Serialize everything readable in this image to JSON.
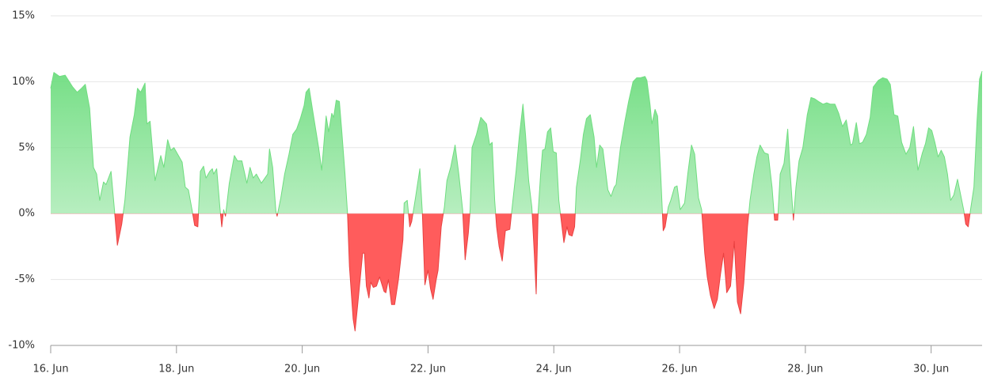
{
  "chart_data": {
    "type": "area",
    "x": [
      16.0,
      16.05,
      16.14,
      16.23,
      16.35,
      16.42,
      16.49,
      16.55,
      16.62,
      16.68,
      16.73,
      16.78,
      16.84,
      16.88,
      16.96,
      17.01,
      17.06,
      17.13,
      17.18,
      17.26,
      17.33,
      17.38,
      17.43,
      17.5,
      17.53,
      17.58,
      17.66,
      17.75,
      17.8,
      17.86,
      17.91,
      17.96,
      18.09,
      18.14,
      18.19,
      18.25,
      18.29,
      18.34,
      18.38,
      18.43,
      18.47,
      18.53,
      18.57,
      18.59,
      18.64,
      18.69,
      18.72,
      18.75,
      18.78,
      18.84,
      18.92,
      18.97,
      19.04,
      19.12,
      19.17,
      19.22,
      19.27,
      19.35,
      19.45,
      19.48,
      19.53,
      19.58,
      19.6,
      19.66,
      19.72,
      19.79,
      19.85,
      19.91,
      19.97,
      20.03,
      20.06,
      20.11,
      20.16,
      20.26,
      20.31,
      20.38,
      20.42,
      20.47,
      20.5,
      20.54,
      20.59,
      20.63,
      20.68,
      20.72,
      20.75,
      20.81,
      20.84,
      20.88,
      20.96,
      20.99,
      21.02,
      21.06,
      21.09,
      21.13,
      21.18,
      21.23,
      21.3,
      21.33,
      21.37,
      21.42,
      21.47,
      21.53,
      21.6,
      21.62,
      21.67,
      21.71,
      21.74,
      21.8,
      21.87,
      21.91,
      21.95,
      22.0,
      22.04,
      22.08,
      22.13,
      22.16,
      22.21,
      22.26,
      22.3,
      22.36,
      22.43,
      22.49,
      22.55,
      22.59,
      22.64,
      22.67,
      22.7,
      22.77,
      22.84,
      22.93,
      22.98,
      23.02,
      23.06,
      23.09,
      23.13,
      23.18,
      23.23,
      23.3,
      23.35,
      23.4,
      23.45,
      23.51,
      23.55,
      23.6,
      23.65,
      23.69,
      23.72,
      23.75,
      23.79,
      23.82,
      23.86,
      23.9,
      23.95,
      23.99,
      24.04,
      24.08,
      24.13,
      24.16,
      24.21,
      24.24,
      24.29,
      24.33,
      24.36,
      24.42,
      24.47,
      24.52,
      24.58,
      24.64,
      24.68,
      24.73,
      24.78,
      24.86,
      24.91,
      24.96,
      24.99,
      25.06,
      25.13,
      25.19,
      25.26,
      25.32,
      25.38,
      25.45,
      25.48,
      25.53,
      25.56,
      25.61,
      25.65,
      25.7,
      25.74,
      25.77,
      25.82,
      25.86,
      25.92,
      25.96,
      26.01,
      26.08,
      26.13,
      26.19,
      26.24,
      26.3,
      26.35,
      26.4,
      26.44,
      26.49,
      26.55,
      26.6,
      26.65,
      26.7,
      26.75,
      26.81,
      26.87,
      26.92,
      26.97,
      27.02,
      27.08,
      27.12,
      27.18,
      27.23,
      27.28,
      27.35,
      27.41,
      27.47,
      27.51,
      27.56,
      27.6,
      27.66,
      27.72,
      27.76,
      27.81,
      27.85,
      27.9,
      27.96,
      28.03,
      28.09,
      28.15,
      28.21,
      28.28,
      28.34,
      28.4,
      28.47,
      28.53,
      28.59,
      28.65,
      28.72,
      28.75,
      28.81,
      28.86,
      28.91,
      28.97,
      29.03,
      29.08,
      29.16,
      29.23,
      29.3,
      29.35,
      29.41,
      29.47,
      29.53,
      29.6,
      29.66,
      29.72,
      29.79,
      29.86,
      29.91,
      29.96,
      30.01,
      30.06,
      30.11,
      30.16,
      30.21,
      30.26,
      30.31,
      30.36,
      30.42,
      30.47,
      30.52,
      30.55,
      30.59,
      30.63,
      30.68,
      30.73,
      30.77,
      30.81
    ],
    "values": [
      9.5,
      10.7,
      10.4,
      10.5,
      9.6,
      9.2,
      9.5,
      9.8,
      8,
      3.5,
      3,
      1,
      2.4,
      2.2,
      3.2,
      0.5,
      -2.4,
      -0.8,
      1,
      5.8,
      7.5,
      9.5,
      9.2,
      9.9,
      6.8,
      7,
      2.5,
      4.4,
      3.5,
      5.6,
      4.8,
      5,
      3.9,
      2,
      1.8,
      0.2,
      -0.9,
      -1,
      3.2,
      3.6,
      2.7,
      3.2,
      3.4,
      3,
      3.4,
      0.5,
      -1,
      0.3,
      -0.2,
      2.3,
      4.4,
      4,
      4,
      2.3,
      3.5,
      2.7,
      3,
      2.3,
      3,
      4.9,
      3.5,
      0.2,
      -0.2,
      1.2,
      3,
      4.5,
      6,
      6.4,
      7.2,
      8.2,
      9.2,
      9.5,
      8,
      5,
      3.3,
      7.4,
      6.2,
      7.6,
      7.3,
      8.6,
      8.5,
      6.2,
      3,
      0,
      -4,
      -8,
      -8.9,
      -7,
      -3,
      -3,
      -5.5,
      -6.4,
      -5.2,
      -5.6,
      -5.5,
      -4.8,
      -5.9,
      -6,
      -5,
      -6.9,
      -6.9,
      -5,
      -2,
      0.8,
      1,
      -1,
      -0.6,
      1.2,
      3.4,
      0,
      -5.4,
      -4.3,
      -5.7,
      -6.5,
      -5,
      -4.3,
      -1,
      0.5,
      2.5,
      3.5,
      5.2,
      3,
      0.3,
      -3.5,
      -1.5,
      0.3,
      5,
      6,
      7.3,
      6.8,
      5.2,
      5.4,
      1,
      -1,
      -2.5,
      -3.6,
      -1.3,
      -1.2,
      1,
      3.2,
      5.8,
      8.3,
      6,
      2.5,
      0.5,
      -3,
      -6.1,
      0,
      3,
      4.8,
      4.9,
      6.2,
      6.5,
      4.7,
      4.6,
      1,
      -1,
      -2.2,
      -1,
      -1.6,
      -1.7,
      -1,
      2,
      4,
      6,
      7.2,
      7.5,
      5.8,
      3.5,
      5.2,
      4.9,
      1.8,
      1.3,
      2,
      2.2,
      5,
      7,
      8.5,
      10,
      10.3,
      10.3,
      10.4,
      10.1,
      8.3,
      6.8,
      7.9,
      7.4,
      3,
      -1.3,
      -1,
      0.5,
      1,
      2,
      2.1,
      0.3,
      0.8,
      3,
      5.2,
      4.5,
      1.2,
      0.3,
      -3,
      -4.8,
      -6.2,
      -7.2,
      -6.5,
      -4.6,
      -3,
      -6,
      -5.5,
      -2.1,
      -6.7,
      -7.6,
      -5.3,
      -1,
      1,
      3,
      4.3,
      5.2,
      4.6,
      4.5,
      2,
      -0.5,
      -0.5,
      3,
      3.8,
      6.4,
      3,
      -0.5,
      2,
      4,
      5,
      7.5,
      8.8,
      8.7,
      8.5,
      8.3,
      8.4,
      8.3,
      8.3,
      7.6,
      6.6,
      7.1,
      5.2,
      5.3,
      6.9,
      5.3,
      5.4,
      6,
      7.3,
      9.6,
      10.1,
      10.3,
      10.2,
      9.8,
      7.5,
      7.4,
      5.4,
      4.5,
      5,
      6.6,
      3.3,
      4.6,
      5.3,
      6.5,
      6.3,
      5.4,
      4.3,
      4.8,
      4.3,
      3,
      1,
      1.4,
      2.6,
      1.4,
      0.2,
      -0.8,
      -1,
      0.4,
      2,
      7,
      10.2,
      10.8
    ],
    "positive_color": "#6fdd80",
    "negative_color": "#ff5c5c",
    "xlim": [
      16,
      30.81
    ],
    "ylim": [
      -10,
      15
    ],
    "xticks": [
      {
        "value": 16,
        "label": "16. Jun"
      },
      {
        "value": 18,
        "label": "18. Jun"
      },
      {
        "value": 20,
        "label": "20. Jun"
      },
      {
        "value": 22,
        "label": "22. Jun"
      },
      {
        "value": 24,
        "label": "24. Jun"
      },
      {
        "value": 26,
        "label": "26. Jun"
      },
      {
        "value": 28,
        "label": "28. Jun"
      },
      {
        "value": 30,
        "label": "30. Jun"
      }
    ],
    "yticks": [
      {
        "value": -10,
        "label": "-10%"
      },
      {
        "value": -5,
        "label": "-5%"
      },
      {
        "value": 0,
        "label": "0%"
      },
      {
        "value": 5,
        "label": "5%"
      },
      {
        "value": 10,
        "label": "10%"
      },
      {
        "value": 15,
        "label": "15%"
      }
    ],
    "grid": true
  }
}
